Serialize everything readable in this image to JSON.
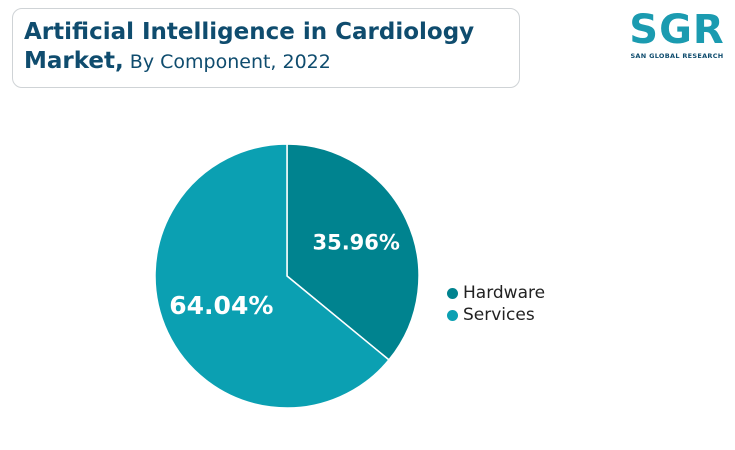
{
  "header": {
    "title_bold": "Artificial Intelligence in Cardiology",
    "title_bold_2": "Market,",
    "title_regular": " By Component, 2022"
  },
  "logo": {
    "mark": "SGR",
    "subtitle": "SAN GLOBAL RESEARCH",
    "icon": "sgr-logo"
  },
  "chart_data": {
    "type": "pie",
    "title": "Artificial Intelligence in Cardiology Market, By Component, 2022",
    "categories": [
      "Hardware",
      "Services"
    ],
    "values": [
      35.96,
      64.04
    ],
    "data_labels": [
      "35.96%",
      "64.04%"
    ],
    "colors": [
      "#00838f",
      "#0ba0b2"
    ],
    "legend": "right",
    "start_angle_deg": 0,
    "direction": "clockwise"
  }
}
